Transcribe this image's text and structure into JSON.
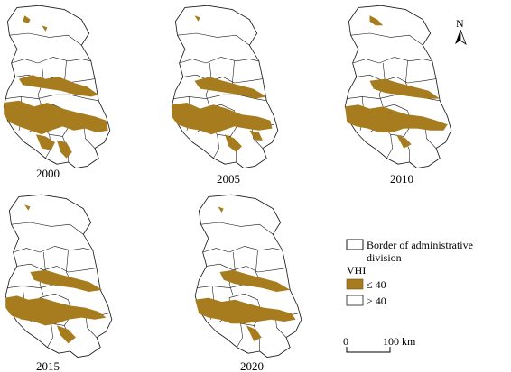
{
  "maps": [
    {
      "year": "2000"
    },
    {
      "year": "2005"
    },
    {
      "year": "2010"
    },
    {
      "year": "2015"
    },
    {
      "year": "2020"
    }
  ],
  "north_arrow": {
    "label": "N"
  },
  "legend": {
    "border_label_line1": "Border of administrative",
    "border_label_line2": "division",
    "vhi_title": "VHI",
    "low_label": "≤ 40",
    "high_label": "> 40"
  },
  "scale_bar": {
    "start_label": "0",
    "end_label": "100 km"
  },
  "colors": {
    "low_vhi": "#a67c1e",
    "high_vhi": "#ffffff",
    "border": "#1a1a1a"
  }
}
